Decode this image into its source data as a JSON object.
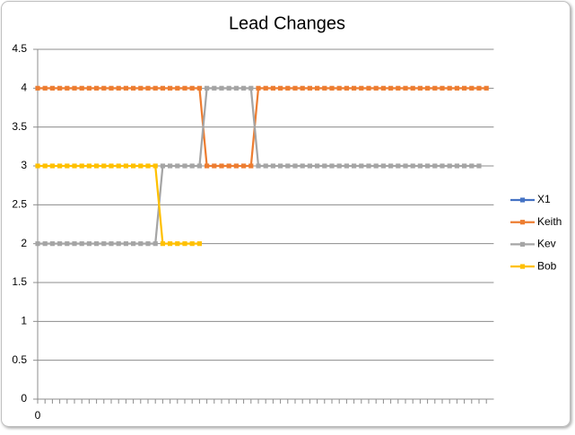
{
  "chart_data": {
    "type": "line",
    "title": "Lead Changes",
    "x": [
      0,
      1,
      2,
      3,
      4,
      5,
      6,
      7,
      8,
      9,
      10,
      11,
      12,
      13,
      14,
      15,
      16,
      17,
      18,
      19,
      20,
      21,
      22,
      23,
      24,
      25,
      26,
      27,
      28,
      29,
      30,
      31,
      32,
      33,
      34,
      35,
      36,
      37,
      38,
      39,
      40,
      41,
      42,
      43,
      44,
      45,
      46,
      47,
      48,
      49,
      50,
      51,
      52,
      53,
      54,
      55,
      56,
      57,
      58,
      59,
      60,
      61
    ],
    "xlim": [
      0,
      62
    ],
    "xticks": [
      0
    ],
    "ylim": [
      0,
      4.5
    ],
    "yticks": [
      0,
      0.5,
      1,
      1.5,
      2,
      2.5,
      3,
      3.5,
      4,
      4.5
    ],
    "grid": true,
    "legend": "right",
    "series": [
      {
        "name": "X1",
        "color": "#4472c4",
        "values": [
          null,
          null,
          null,
          null,
          null,
          null,
          null,
          null,
          null,
          null,
          null,
          null,
          null,
          null,
          null,
          null,
          null,
          null,
          null,
          null,
          null,
          null,
          null,
          null,
          null,
          null,
          null,
          null,
          null,
          null,
          null,
          null,
          null,
          null,
          null,
          null,
          null,
          null,
          null,
          null,
          null,
          null,
          null,
          null,
          null,
          null,
          null,
          null,
          null,
          null,
          null,
          null,
          null,
          null,
          null,
          null,
          null,
          null,
          null,
          null,
          null,
          null
        ]
      },
      {
        "name": "Keith",
        "color": "#ed7d31",
        "values": [
          4,
          4,
          4,
          4,
          4,
          4,
          4,
          4,
          4,
          4,
          4,
          4,
          4,
          4,
          4,
          4,
          4,
          4,
          4,
          4,
          4,
          4,
          4,
          3,
          3,
          3,
          3,
          3,
          3,
          3,
          4,
          4,
          4,
          4,
          4,
          4,
          4,
          4,
          4,
          4,
          4,
          4,
          4,
          4,
          4,
          4,
          4,
          4,
          4,
          4,
          4,
          4,
          4,
          4,
          4,
          4,
          4,
          4,
          4,
          4,
          4,
          4
        ]
      },
      {
        "name": "Kev",
        "color": "#a5a5a5",
        "values": [
          2,
          2,
          2,
          2,
          2,
          2,
          2,
          2,
          2,
          2,
          2,
          2,
          2,
          2,
          2,
          2,
          2,
          3,
          3,
          3,
          3,
          3,
          3,
          4,
          4,
          4,
          4,
          4,
          4,
          4,
          3,
          3,
          3,
          3,
          3,
          3,
          3,
          3,
          3,
          3,
          3,
          3,
          3,
          3,
          3,
          3,
          3,
          3,
          3,
          3,
          3,
          3,
          3,
          3,
          3,
          3,
          3,
          3,
          3,
          3,
          3,
          null
        ]
      },
      {
        "name": "Bob",
        "color": "#ffc000",
        "values": [
          3,
          3,
          3,
          3,
          3,
          3,
          3,
          3,
          3,
          3,
          3,
          3,
          3,
          3,
          3,
          3,
          3,
          2,
          2,
          2,
          2,
          2,
          2,
          null,
          null,
          null,
          null,
          null,
          null,
          null,
          null,
          null,
          null,
          null,
          null,
          null,
          null,
          null,
          null,
          null,
          null,
          null,
          null,
          null,
          null,
          null,
          null,
          null,
          null,
          null,
          null,
          null,
          null,
          null,
          null,
          null,
          null,
          null,
          null,
          null,
          null,
          null
        ]
      }
    ]
  }
}
